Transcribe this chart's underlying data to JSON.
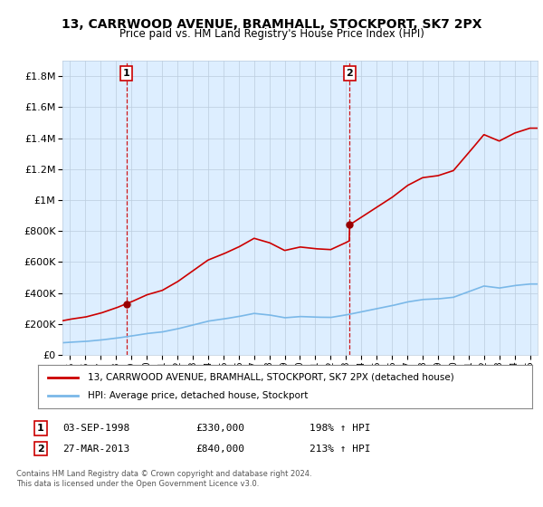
{
  "title": "13, CARRWOOD AVENUE, BRAMHALL, STOCKPORT, SK7 2PX",
  "subtitle": "Price paid vs. HM Land Registry's House Price Index (HPI)",
  "legend_line1": "13, CARRWOOD AVENUE, BRAMHALL, STOCKPORT, SK7 2PX (detached house)",
  "legend_line2": "HPI: Average price, detached house, Stockport",
  "footer": "Contains HM Land Registry data © Crown copyright and database right 2024.\nThis data is licensed under the Open Government Licence v3.0.",
  "sale1_label": "1",
  "sale1_date": "03-SEP-1998",
  "sale1_price": "£330,000",
  "sale1_hpi": "198% ↑ HPI",
  "sale2_label": "2",
  "sale2_date": "27-MAR-2013",
  "sale2_price": "£840,000",
  "sale2_hpi": "213% ↑ HPI",
  "sale1_year": 1998.67,
  "sale1_value": 330000,
  "sale2_year": 2013.23,
  "sale2_value": 840000,
  "hpi_color": "#7ab8e8",
  "price_color": "#cc0000",
  "marker_color": "#990000",
  "background_color": "#ffffff",
  "plot_bg_color": "#ddeeff",
  "grid_color": "#bbccdd",
  "ylim": [
    0,
    1900000
  ],
  "xlim_start": 1994.5,
  "xlim_end": 2025.5,
  "hpi_years": [
    1994,
    1995,
    1996,
    1997,
    1998,
    1999,
    2000,
    2001,
    2002,
    2003,
    2004,
    2005,
    2006,
    2007,
    2008,
    2009,
    2010,
    2011,
    2012,
    2013,
    2014,
    2015,
    2016,
    2017,
    2018,
    2019,
    2020,
    2021,
    2022,
    2023,
    2024,
    2025
  ],
  "hpi_vals": [
    75000,
    82000,
    87000,
    96000,
    108000,
    122000,
    138000,
    148000,
    168000,
    193000,
    218000,
    232000,
    248000,
    268000,
    258000,
    240000,
    248000,
    244000,
    242000,
    258000,
    278000,
    298000,
    318000,
    342000,
    358000,
    362000,
    372000,
    408000,
    445000,
    432000,
    448000,
    458000
  ]
}
